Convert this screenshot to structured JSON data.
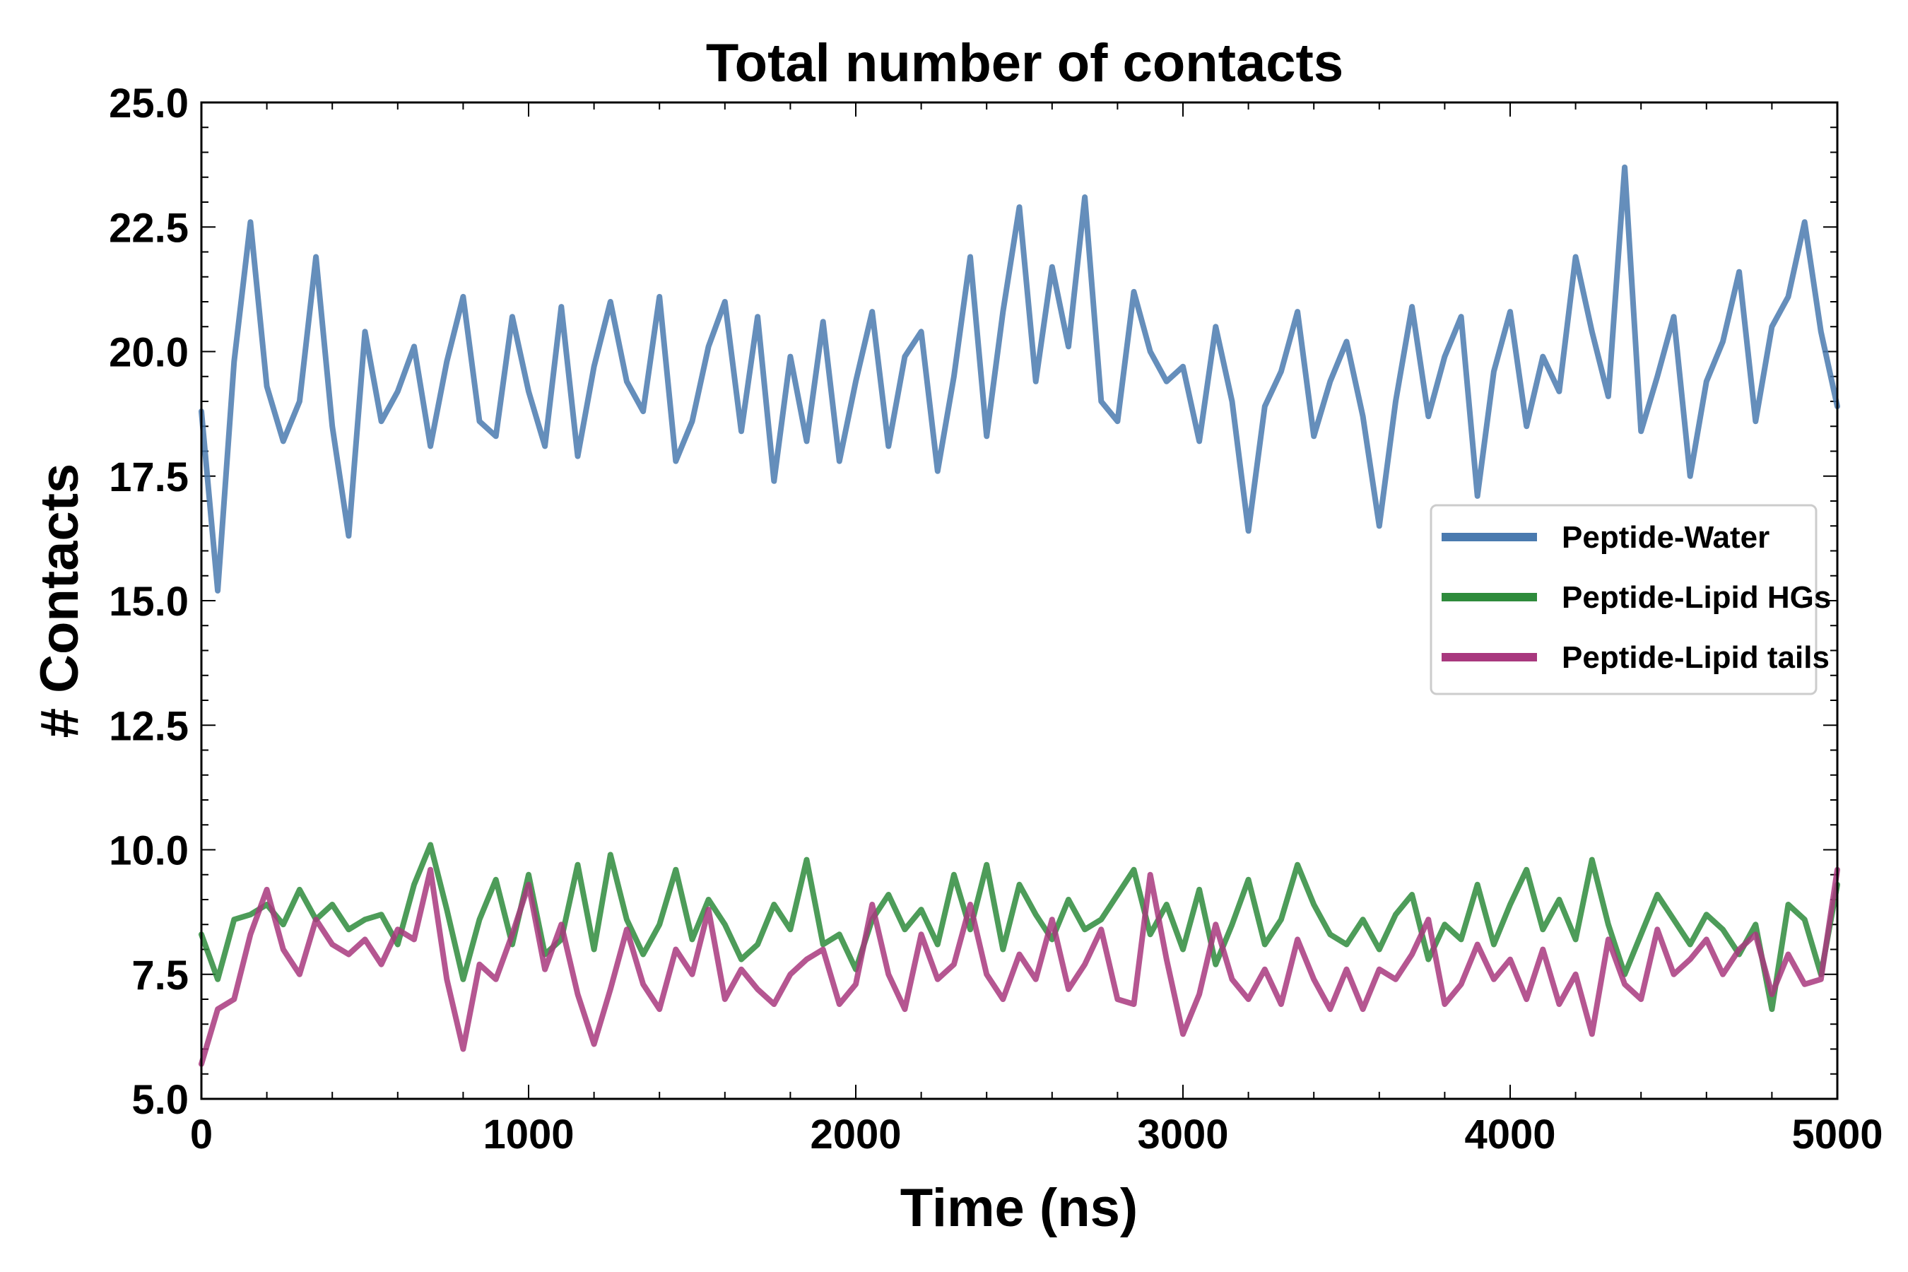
{
  "chart_data": {
    "type": "line",
    "title": "Total number of contacts",
    "xlabel": "Time (ns)",
    "ylabel": "# Contacts",
    "xlim": [
      0,
      5000
    ],
    "ylim": [
      5.0,
      25.0
    ],
    "x_ticks": [
      "0",
      "1000",
      "2000",
      "3000",
      "4000",
      "5000"
    ],
    "y_ticks": [
      "5.0",
      "7.5",
      "10.0",
      "12.5",
      "15.0",
      "17.5",
      "20.0",
      "22.5",
      "25.0"
    ],
    "grid": false,
    "legend_position": "center-right",
    "x": [
      0,
      50,
      100,
      150,
      200,
      250,
      300,
      350,
      400,
      450,
      500,
      550,
      600,
      650,
      700,
      750,
      800,
      850,
      900,
      950,
      1000,
      1050,
      1100,
      1150,
      1200,
      1250,
      1300,
      1350,
      1400,
      1450,
      1500,
      1550,
      1600,
      1650,
      1700,
      1750,
      1800,
      1850,
      1900,
      1950,
      2000,
      2050,
      2100,
      2150,
      2200,
      2250,
      2300,
      2350,
      2400,
      2450,
      2500,
      2550,
      2600,
      2650,
      2700,
      2750,
      2800,
      2850,
      2900,
      2950,
      3000,
      3050,
      3100,
      3150,
      3200,
      3250,
      3300,
      3350,
      3400,
      3450,
      3500,
      3550,
      3600,
      3650,
      3700,
      3750,
      3800,
      3850,
      3900,
      3950,
      4000,
      4050,
      4100,
      4150,
      4200,
      4250,
      4300,
      4350,
      4400,
      4450,
      4500,
      4550,
      4600,
      4650,
      4700,
      4750,
      4800,
      4850,
      4900,
      4950,
      5000
    ],
    "series": [
      {
        "name": "Peptide-Water",
        "color": "#4a7aaf",
        "values": [
          18.8,
          15.2,
          19.8,
          22.6,
          19.3,
          18.2,
          19.0,
          21.9,
          18.5,
          16.3,
          20.4,
          18.6,
          19.2,
          20.1,
          18.1,
          19.8,
          21.1,
          18.6,
          18.3,
          20.7,
          19.2,
          18.1,
          20.9,
          17.9,
          19.7,
          21.0,
          19.4,
          18.8,
          21.1,
          17.8,
          18.6,
          20.1,
          21.0,
          18.4,
          20.7,
          17.4,
          19.9,
          18.2,
          20.6,
          17.8,
          19.4,
          20.8,
          18.1,
          19.9,
          20.4,
          17.6,
          19.5,
          21.9,
          18.3,
          20.8,
          22.9,
          19.4,
          21.7,
          20.1,
          23.1,
          19.0,
          18.6,
          21.2,
          20.0,
          19.4,
          19.7,
          18.2,
          20.5,
          19.0,
          16.4,
          18.9,
          19.6,
          20.8,
          18.3,
          19.4,
          20.2,
          18.7,
          16.5,
          19.0,
          20.9,
          18.7,
          19.9,
          20.7,
          17.1,
          19.6,
          20.8,
          18.5,
          19.9,
          19.2,
          21.9,
          20.4,
          19.1,
          23.7,
          18.4,
          19.5,
          20.7,
          17.5,
          19.4,
          20.2,
          21.6,
          18.6,
          20.5,
          21.1,
          22.6,
          20.4,
          18.9
        ]
      },
      {
        "name": "Peptide-Lipid HGs",
        "color": "#2e8b3c",
        "values": [
          8.3,
          7.4,
          8.6,
          8.7,
          8.9,
          8.5,
          9.2,
          8.6,
          8.9,
          8.4,
          8.6,
          8.7,
          8.1,
          9.3,
          10.1,
          8.8,
          7.4,
          8.6,
          9.4,
          8.1,
          9.5,
          7.9,
          8.2,
          9.7,
          8.0,
          9.9,
          8.6,
          7.9,
          8.5,
          9.6,
          8.2,
          9.0,
          8.5,
          7.8,
          8.1,
          8.9,
          8.4,
          9.8,
          8.1,
          8.3,
          7.6,
          8.6,
          9.1,
          8.4,
          8.8,
          8.1,
          9.5,
          8.4,
          9.7,
          8.0,
          9.3,
          8.7,
          8.2,
          9.0,
          8.4,
          8.6,
          9.1,
          9.6,
          8.3,
          8.9,
          8.0,
          9.2,
          7.7,
          8.5,
          9.4,
          8.1,
          8.6,
          9.7,
          8.9,
          8.3,
          8.1,
          8.6,
          8.0,
          8.7,
          9.1,
          7.8,
          8.5,
          8.2,
          9.3,
          8.1,
          8.9,
          9.6,
          8.4,
          9.0,
          8.2,
          9.8,
          8.5,
          7.5,
          8.3,
          9.1,
          8.6,
          8.1,
          8.7,
          8.4,
          7.9,
          8.5,
          6.8,
          8.9,
          8.6,
          7.5,
          9.3
        ]
      },
      {
        "name": "Peptide-Lipid tails",
        "color": "#a8387e",
        "values": [
          5.7,
          6.8,
          7.0,
          8.3,
          9.2,
          8.0,
          7.5,
          8.6,
          8.1,
          7.9,
          8.2,
          7.7,
          8.4,
          8.2,
          9.6,
          7.4,
          6.0,
          7.7,
          7.4,
          8.3,
          9.3,
          7.6,
          8.5,
          7.1,
          6.1,
          7.2,
          8.4,
          7.3,
          6.8,
          8.0,
          7.5,
          8.8,
          7.0,
          7.6,
          7.2,
          6.9,
          7.5,
          7.8,
          8.0,
          6.9,
          7.3,
          8.9,
          7.5,
          6.8,
          8.3,
          7.4,
          7.7,
          8.9,
          7.5,
          7.0,
          7.9,
          7.4,
          8.6,
          7.2,
          7.7,
          8.4,
          7.0,
          6.9,
          9.5,
          7.8,
          6.3,
          7.1,
          8.5,
          7.4,
          7.0,
          7.6,
          6.9,
          8.2,
          7.4,
          6.8,
          7.6,
          6.8,
          7.6,
          7.4,
          7.9,
          8.6,
          6.9,
          7.3,
          8.1,
          7.4,
          7.8,
          7.0,
          8.0,
          6.9,
          7.5,
          6.3,
          8.2,
          7.3,
          7.0,
          8.4,
          7.5,
          7.8,
          8.2,
          7.5,
          8.0,
          8.3,
          7.1,
          7.9,
          7.3,
          7.4,
          9.6
        ]
      }
    ]
  }
}
